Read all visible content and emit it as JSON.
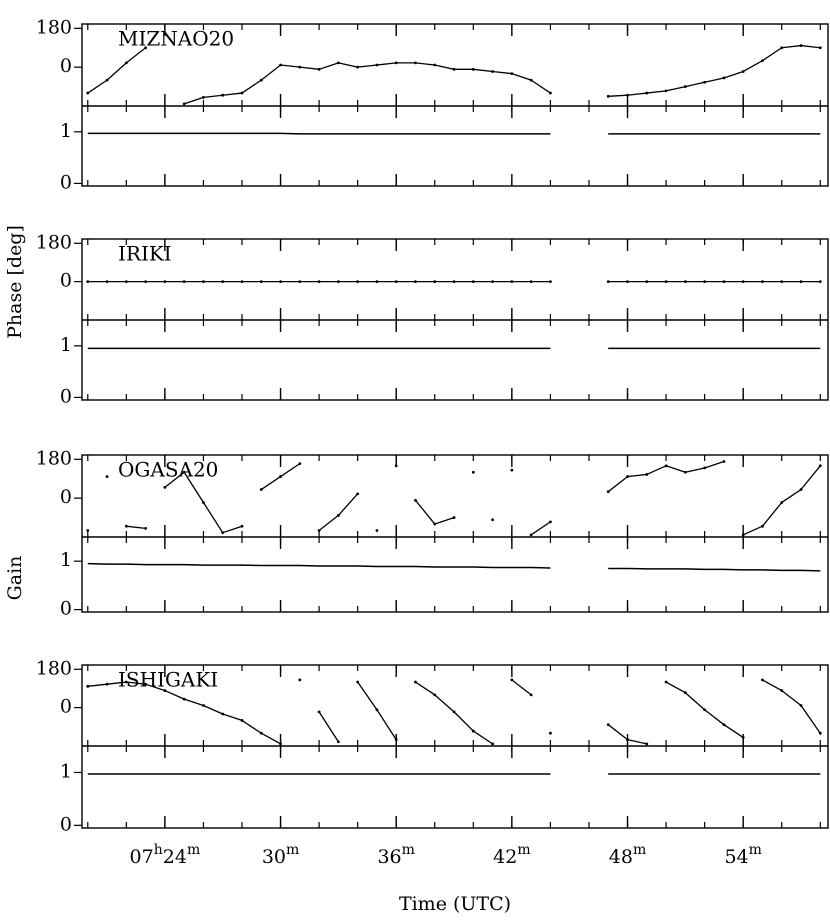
{
  "chart_data": {
    "type": "line",
    "xlabel": "Time (UTC)",
    "phase_ylabel": "Phase [deg]",
    "gain_ylabel": "Gain",
    "xlim": [
      19.7,
      58.4
    ],
    "xticks": [
      {
        "value": 24,
        "label": "07h24m"
      },
      {
        "value": 30,
        "label": "30m"
      },
      {
        "value": 36,
        "label": "36m"
      },
      {
        "value": 42,
        "label": "42m"
      },
      {
        "value": 48,
        "label": "48m"
      },
      {
        "value": 54,
        "label": "54m"
      }
    ],
    "xminor_ticks": [
      20,
      22,
      24,
      26,
      28,
      30,
      32,
      34,
      36,
      38,
      40,
      42,
      44,
      46,
      48,
      50,
      52,
      54,
      56,
      58
    ],
    "phase_ylim": [
      -180,
      200
    ],
    "phase_yticks": [
      0,
      180
    ],
    "gain_ylim": [
      -0.05,
      1.5
    ],
    "gain_yticks": [
      0,
      1
    ],
    "color": "#000000",
    "x": [
      20,
      21,
      22,
      23,
      24,
      25,
      26,
      27,
      28,
      29,
      30,
      31,
      32,
      33,
      34,
      35,
      36,
      37,
      38,
      39,
      40,
      41,
      42,
      43,
      44,
      45,
      46,
      47,
      48,
      49,
      50,
      51,
      52,
      53,
      54,
      55,
      56,
      57,
      58
    ],
    "stations": [
      {
        "name": "MIZNAO20",
        "phase": [
          -120,
          -60,
          20,
          90,
          null,
          -170,
          -140,
          -130,
          -120,
          -60,
          10,
          0,
          -10,
          20,
          0,
          10,
          20,
          20,
          10,
          -10,
          -10,
          -20,
          -30,
          -60,
          -120,
          null,
          null,
          -135,
          -130,
          -120,
          -110,
          -90,
          -70,
          -50,
          -20,
          30,
          90,
          100,
          90
        ],
        "gain": [
          0.97,
          0.97,
          0.97,
          0.97,
          0.97,
          0.97,
          0.97,
          0.97,
          0.97,
          0.97,
          0.97,
          0.96,
          0.96,
          0.96,
          0.96,
          0.96,
          0.96,
          0.96,
          0.96,
          0.96,
          0.96,
          0.96,
          0.96,
          0.96,
          0.96,
          null,
          null,
          0.96,
          0.96,
          0.96,
          0.96,
          0.96,
          0.96,
          0.96,
          0.96,
          0.96,
          0.96,
          0.96,
          0.96
        ]
      },
      {
        "name": "IRIKI",
        "phase": [
          0,
          0,
          0,
          0,
          0,
          0,
          0,
          0,
          0,
          0,
          0,
          0,
          0,
          0,
          0,
          0,
          0,
          0,
          0,
          0,
          0,
          0,
          0,
          0,
          0,
          null,
          null,
          0,
          0,
          0,
          0,
          0,
          0,
          0,
          0,
          0,
          0,
          0,
          0
        ],
        "gain": [
          0.95,
          0.95,
          0.95,
          0.95,
          0.95,
          0.95,
          0.95,
          0.95,
          0.95,
          0.95,
          0.95,
          0.95,
          0.95,
          0.95,
          0.95,
          0.95,
          0.95,
          0.95,
          0.95,
          0.95,
          0.95,
          0.95,
          0.95,
          0.95,
          0.95,
          null,
          null,
          0.95,
          0.95,
          0.95,
          0.95,
          0.95,
          0.95,
          0.95,
          0.95,
          0.95,
          0.95,
          0.95,
          0.95
        ]
      },
      {
        "name": "OGASA20",
        "phase": [
          -150,
          100,
          -130,
          -140,
          50,
          120,
          -20,
          -160,
          -130,
          40,
          100,
          160,
          -150,
          -80,
          20,
          -150,
          150,
          -10,
          -120,
          -90,
          120,
          -100,
          130,
          -170,
          -110,
          null,
          null,
          30,
          100,
          110,
          150,
          120,
          140,
          170,
          -170,
          -130,
          -20,
          40,
          150
        ],
        "gain": [
          0.95,
          0.94,
          0.94,
          0.93,
          0.93,
          0.93,
          0.92,
          0.92,
          0.92,
          0.91,
          0.91,
          0.91,
          0.9,
          0.9,
          0.9,
          0.89,
          0.89,
          0.89,
          0.88,
          0.88,
          0.88,
          0.87,
          0.87,
          0.87,
          0.86,
          null,
          null,
          0.85,
          0.85,
          0.84,
          0.84,
          0.84,
          0.83,
          0.83,
          0.82,
          0.82,
          0.81,
          0.81,
          0.8
        ]
      },
      {
        "name": "ISHIGAKI",
        "phase": [
          100,
          110,
          120,
          110,
          80,
          40,
          10,
          -30,
          -60,
          -120,
          -170,
          130,
          -20,
          -160,
          120,
          -10,
          -150,
          120,
          60,
          -20,
          -110,
          -170,
          130,
          60,
          -120,
          null,
          null,
          -80,
          -150,
          -170,
          120,
          70,
          -10,
          -80,
          -140,
          130,
          80,
          10,
          -120
        ],
        "gain": [
          0.97,
          0.97,
          0.97,
          0.97,
          0.97,
          0.97,
          0.97,
          0.97,
          0.97,
          0.97,
          0.97,
          0.97,
          0.97,
          0.97,
          0.97,
          0.97,
          0.97,
          0.97,
          0.97,
          0.97,
          0.97,
          0.97,
          0.97,
          0.97,
          0.97,
          null,
          null,
          0.97,
          0.97,
          0.97,
          0.97,
          0.97,
          0.97,
          0.97,
          0.97,
          0.97,
          0.97,
          0.97,
          0.97
        ]
      }
    ]
  }
}
